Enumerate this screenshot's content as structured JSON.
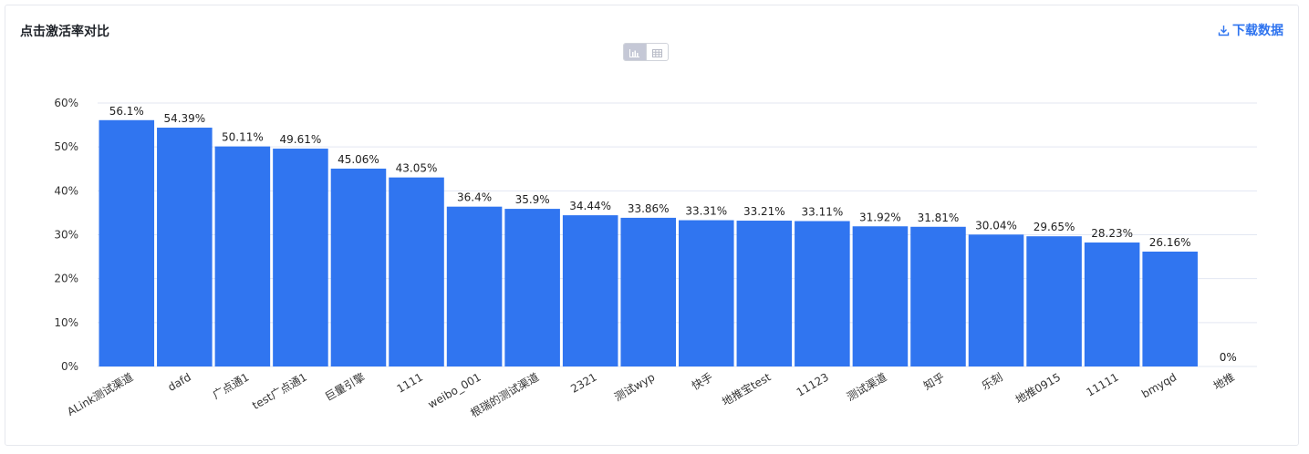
{
  "header": {
    "title": "点击激活率对比",
    "download_label": "下载数据",
    "download_icon": "download-icon",
    "view_toggle": {
      "active": "bar-chart",
      "options": [
        "bar-chart-icon",
        "table-grid-icon"
      ]
    }
  },
  "colors": {
    "bar": "#3075f0",
    "accent": "#2f74ef",
    "grid": "#e3e7f2",
    "text": "#333333"
  },
  "chart_data": {
    "type": "bar",
    "title": "点击激活率对比",
    "xlabel": "",
    "ylabel": "",
    "ylim": [
      0,
      60
    ],
    "yticks": [
      "0%",
      "10%",
      "20%",
      "30%",
      "40%",
      "50%",
      "60%"
    ],
    "grid": true,
    "categories": [
      "ALink测试渠道",
      "dafd",
      "广点通1",
      "test广点通1",
      "巨量引擎",
      "1111",
      "weibo_001",
      "根瑞的测试渠道",
      "2321",
      "测试wyp",
      "快手",
      "地推宝test",
      "11123",
      "测试渠道",
      "知乎",
      "乐刻",
      "地推0915",
      "11111",
      "bmyqd",
      "地推"
    ],
    "values": [
      56.1,
      54.39,
      50.11,
      49.61,
      45.06,
      43.05,
      36.4,
      35.9,
      34.44,
      33.86,
      33.31,
      33.21,
      33.11,
      31.92,
      31.81,
      30.04,
      29.65,
      28.23,
      26.16,
      0
    ],
    "value_labels": [
      "56.1%",
      "54.39%",
      "50.11%",
      "49.61%",
      "45.06%",
      "43.05%",
      "36.4%",
      "35.9%",
      "34.44%",
      "33.86%",
      "33.31%",
      "33.21%",
      "33.11%",
      "31.92%",
      "31.81%",
      "30.04%",
      "29.65%",
      "28.23%",
      "26.16%",
      "0%"
    ]
  }
}
